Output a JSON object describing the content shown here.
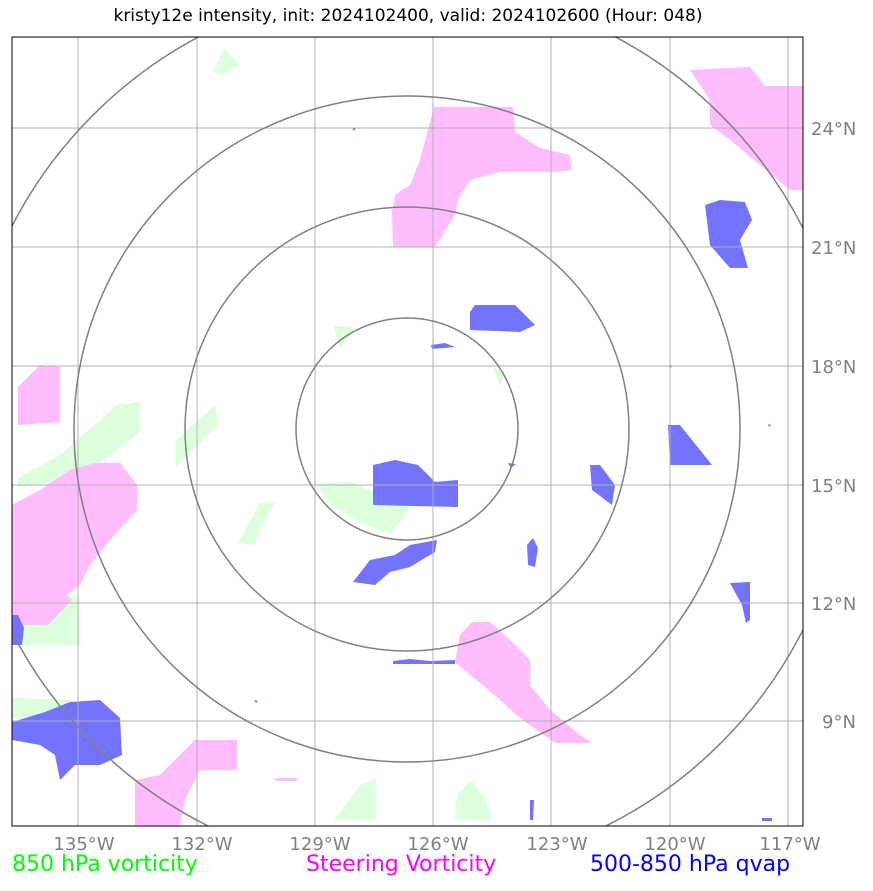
{
  "title": "kristy12e intensity, init: 2024102400, valid: 2024102600 (Hour: 048)",
  "axes": {
    "x_ticks": [
      "135°W",
      "132°W",
      "129°W",
      "126°W",
      "123°W",
      "120°W",
      "117°W"
    ],
    "y_ticks": [
      "24°N",
      "21°N",
      "18°N",
      "15°N",
      "12°N",
      "9°N"
    ]
  },
  "legend": {
    "green": "850 hPa vorticity",
    "magenta": "Steering Vorticity",
    "blue": "500-850 hPa qvap"
  },
  "colors": {
    "green": "#00ff00",
    "magenta": "#ff00ff",
    "blue": "#0000ff",
    "green_fill": "#dcffdc",
    "magenta_fill": "#ffbcff",
    "blue_fill": "#7373ff",
    "grid": "#b0b0b0",
    "rings": "#808080"
  },
  "range_rings": {
    "count": 4,
    "center": "126.7°W 16.4°N"
  }
}
